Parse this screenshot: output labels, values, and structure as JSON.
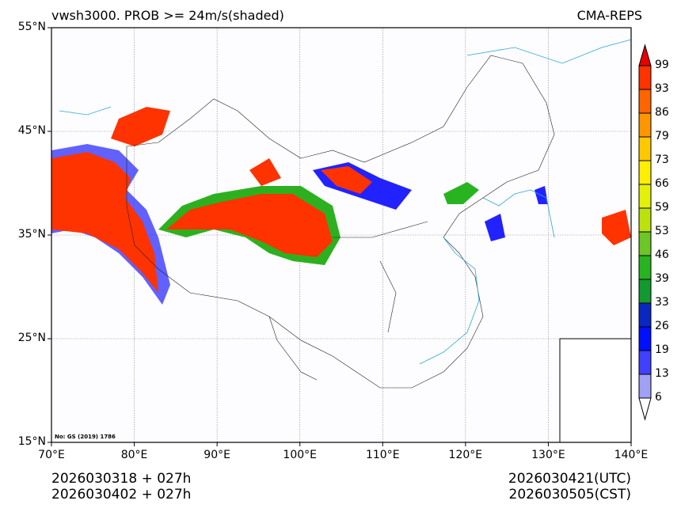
{
  "header": {
    "title_left": "vwsh3000. PROB >= 24m/s(shaded)",
    "title_right": "CMA-REPS"
  },
  "axes": {
    "lat_ticks": [
      "55°N",
      "45°N",
      "35°N",
      "25°N",
      "15°N"
    ],
    "lon_ticks": [
      "70°E",
      "80°E",
      "90°E",
      "100°E",
      "110°E",
      "120°E",
      "130°E",
      "140°E"
    ]
  },
  "map_note": "No: GS (2019) 1786",
  "colorbar": {
    "labels": [
      "99",
      "93",
      "86",
      "79",
      "73",
      "66",
      "59",
      "53",
      "46",
      "39",
      "33",
      "26",
      "19",
      "13",
      "6"
    ],
    "colors": [
      "#ff3300",
      "#ff6400",
      "#ff9600",
      "#ffc800",
      "#ffee00",
      "#e3f00a",
      "#bce20c",
      "#6cc626",
      "#28b420",
      "#129a30",
      "#0a28c0",
      "#0010ff",
      "#4040ff",
      "#a0a0f5"
    ],
    "over_color": "#e80000",
    "under_color": "#ffffff"
  },
  "footer": {
    "init_utc": "2026030318  +  027h",
    "init_cst": "2026030402  +  027h",
    "valid_utc": "2026030421(UTC)",
    "valid_cst": "2026030505(CST)"
  }
}
